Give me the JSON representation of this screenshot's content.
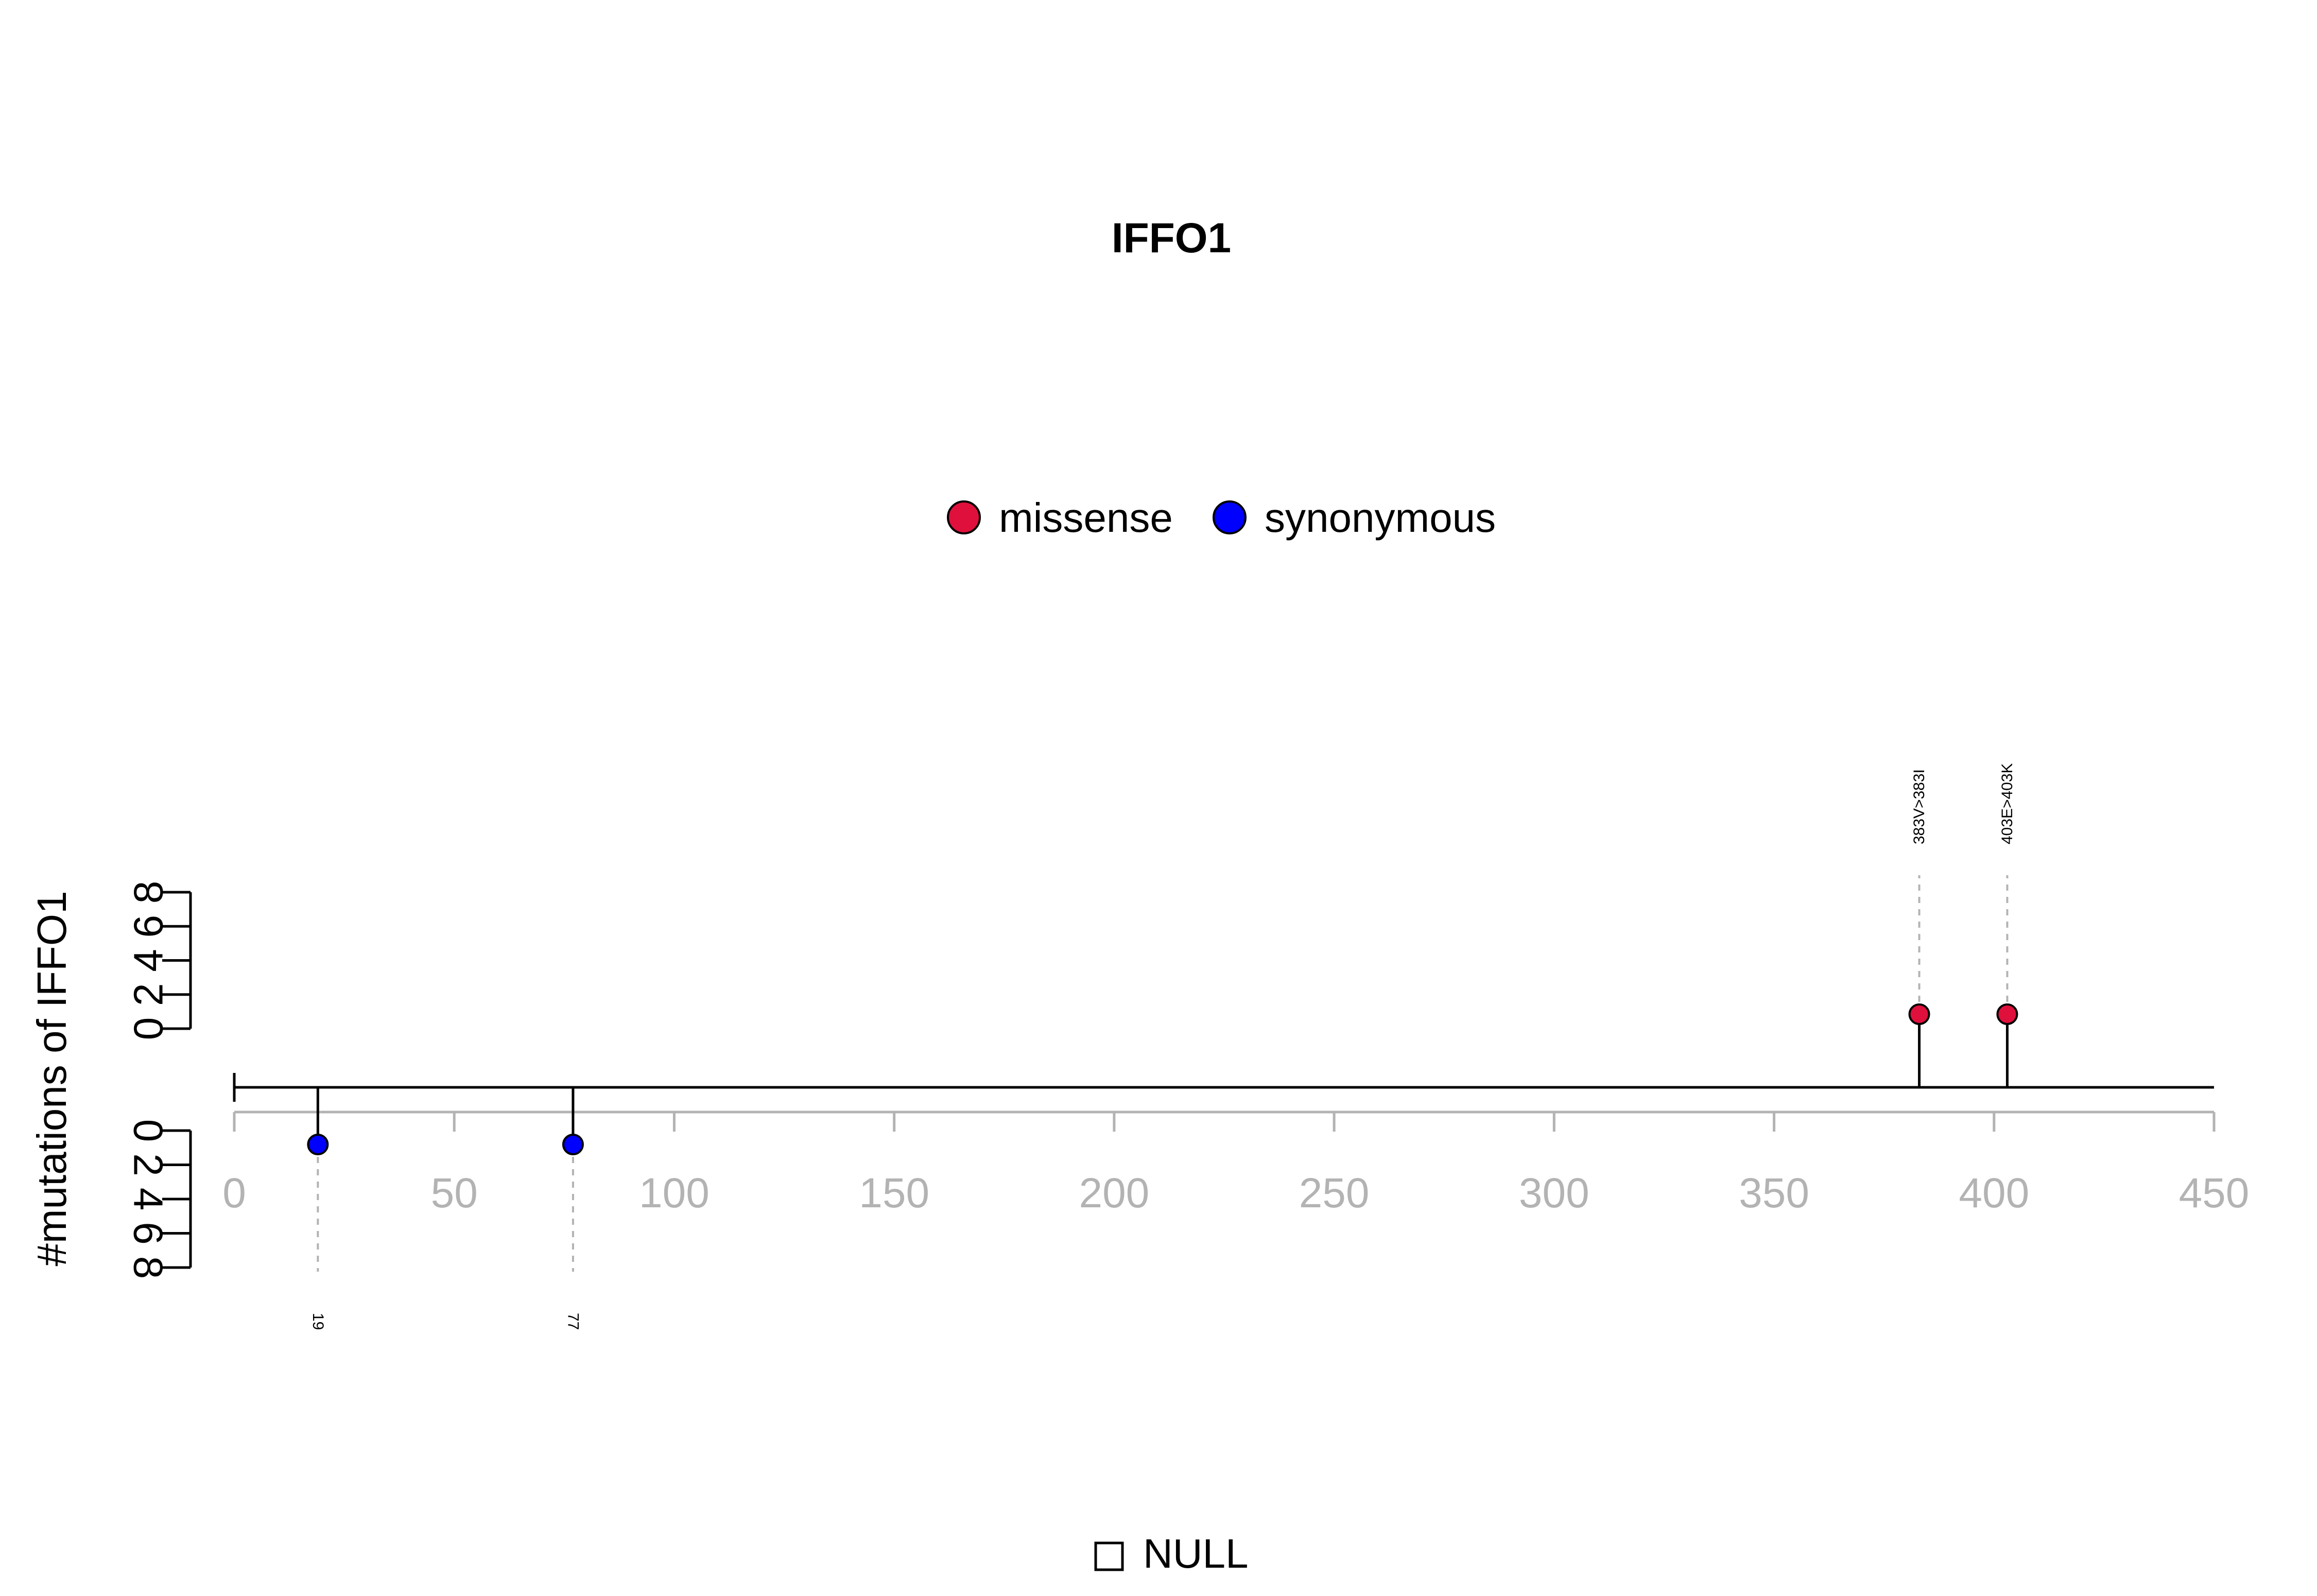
{
  "chart_data": {
    "type": "lollipop",
    "title": "IFFO1",
    "ylabel": "#mutations of IFFO1",
    "xlim": [
      0,
      450
    ],
    "x_ticks": [
      0,
      50,
      100,
      150,
      200,
      250,
      300,
      350,
      400,
      450
    ],
    "y_ticks": [
      0,
      2,
      4,
      6,
      8
    ],
    "legend": {
      "placement": "top-center",
      "items": [
        {
          "label": "missense",
          "color": "#E0103C"
        },
        {
          "label": "synonymous",
          "color": "#0000FF"
        }
      ]
    },
    "bottom_legend": {
      "label": "NULL"
    },
    "series": [
      {
        "name": "missense",
        "color": "#E0103C",
        "side": "top",
        "points": [
          {
            "x": 383,
            "label": "383V>383I"
          },
          {
            "x": 403,
            "label": "403E>403K"
          }
        ]
      },
      {
        "name": "synonymous",
        "color": "#0000FF",
        "side": "bottom",
        "points": [
          {
            "x": 19,
            "label": "19"
          },
          {
            "x": 77,
            "label": "77"
          }
        ]
      }
    ]
  }
}
